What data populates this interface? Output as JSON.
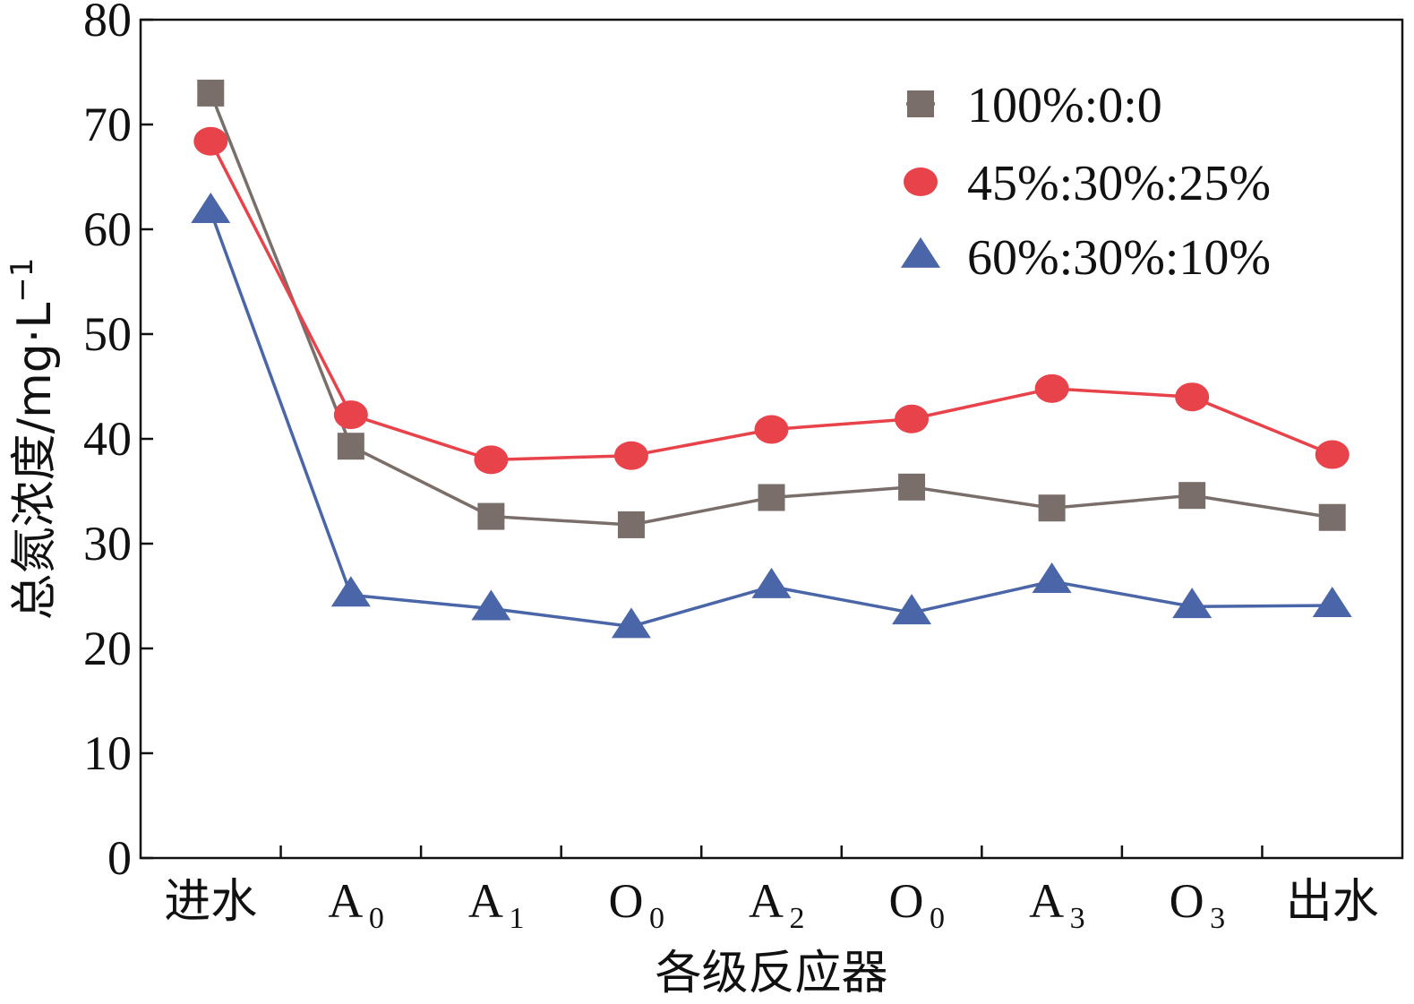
{
  "chart_data": {
    "type": "line",
    "title": "",
    "xlabel": "各级反应器",
    "ylabel": "总氮浓度/mg·L",
    "ylabel_sup": "−1",
    "ylim": [
      0,
      80
    ],
    "yticks": [
      0,
      10,
      20,
      30,
      40,
      50,
      60,
      70,
      80
    ],
    "categories": [
      {
        "base": "进水",
        "sub": ""
      },
      {
        "base": "A",
        "sub": "0"
      },
      {
        "base": "A",
        "sub": "1"
      },
      {
        "base": "O",
        "sub": "0"
      },
      {
        "base": "A",
        "sub": "2"
      },
      {
        "base": "O",
        "sub": "0"
      },
      {
        "base": "A",
        "sub": "3"
      },
      {
        "base": "O",
        "sub": "3"
      },
      {
        "base": "出水",
        "sub": ""
      }
    ],
    "legend_position": "top-right",
    "series": [
      {
        "name": "100%:0:0",
        "color": "#7a6e6b",
        "marker": "square",
        "values": [
          73.0,
          39.3,
          32.6,
          31.8,
          34.4,
          35.4,
          33.4,
          34.6,
          32.5
        ]
      },
      {
        "name": "45%:30%:25%",
        "color": "#e8424a",
        "marker": "circle",
        "values": [
          68.4,
          42.3,
          38.0,
          38.4,
          40.9,
          41.9,
          44.8,
          44.0,
          38.5
        ]
      },
      {
        "name": "60%:30%:10%",
        "color": "#4a65a8",
        "marker": "triangle",
        "values": [
          61.7,
          25.1,
          23.8,
          22.1,
          25.9,
          23.4,
          26.4,
          24.0,
          24.1
        ]
      }
    ]
  }
}
